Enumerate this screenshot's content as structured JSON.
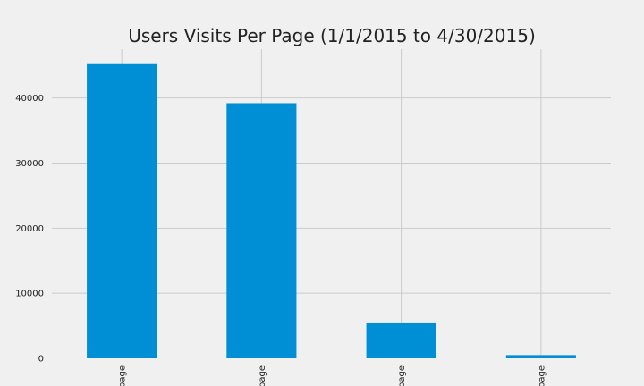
{
  "chart_data": {
    "type": "bar",
    "title": "Users Visits Per Page (1/1/2015 to 4/30/2015)",
    "xlabel": "",
    "ylabel": "",
    "categories": [
      "page",
      "page",
      "page",
      "page"
    ],
    "values": [
      45200,
      39200,
      5500,
      500
    ],
    "ylim": [
      0,
      47500
    ],
    "yticks": [
      0,
      10000,
      20000,
      30000,
      40000
    ],
    "grid": true,
    "colors": {
      "bar": "#008fd5",
      "background": "#f0f0f0",
      "grid": "#cbcbcb"
    }
  }
}
